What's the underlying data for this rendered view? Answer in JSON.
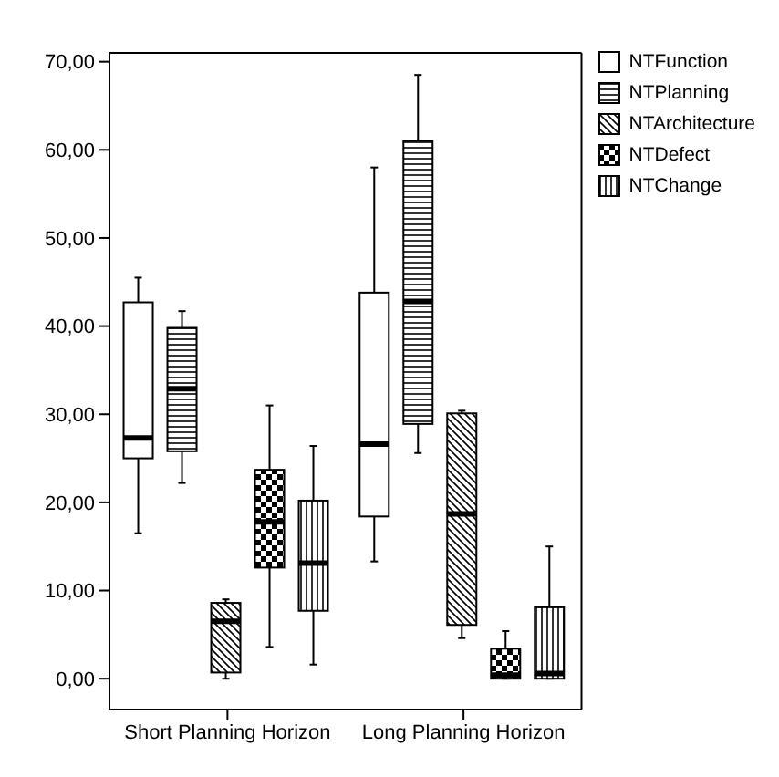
{
  "chart_data": {
    "type": "box",
    "categories": [
      "Short Planning Horizon",
      "Long Planning Horizon"
    ],
    "ylim": [
      -3.5,
      71
    ],
    "yticks": [
      {
        "value": 0,
        "label": "0,00"
      },
      {
        "value": 10,
        "label": "10,00"
      },
      {
        "value": 20,
        "label": "20,00"
      },
      {
        "value": 30,
        "label": "30,00"
      },
      {
        "value": 40,
        "label": "40,00"
      },
      {
        "value": 50,
        "label": "50,00"
      },
      {
        "value": 60,
        "label": "60,00"
      },
      {
        "value": 70,
        "label": "70,00"
      }
    ],
    "legend": "top right",
    "grid": false,
    "series": [
      {
        "name": "NTFunction",
        "color": "#000000",
        "boxes": [
          {
            "low": 16.5,
            "q1": 25,
            "median": 27.3,
            "q3": 42.7,
            "high": 45.5
          },
          {
            "low": 13.3,
            "q1": 18.4,
            "median": 26.6,
            "q3": 43.8,
            "high": 58
          }
        ]
      },
      {
        "name": "NTPlanning",
        "color": "#000000",
        "boxes": [
          {
            "low": 22.2,
            "q1": 25.8,
            "median": 32.9,
            "q3": 39.8,
            "high": 41.7
          },
          {
            "low": 25.6,
            "q1": 28.9,
            "median": 42.8,
            "q3": 61,
            "high": 68.5
          }
        ]
      },
      {
        "name": "NTArchitecture",
        "color": "#000000",
        "boxes": [
          {
            "low": 0,
            "q1": 0.7,
            "median": 6.5,
            "q3": 8.6,
            "high": 9
          },
          {
            "low": 4.6,
            "q1": 6.1,
            "median": 18.7,
            "q3": 30.1,
            "high": 30.4
          }
        ]
      },
      {
        "name": "NTDefect",
        "color": "#000000",
        "boxes": [
          {
            "low": 3.6,
            "q1": 12.6,
            "median": 17.8,
            "q3": 23.7,
            "high": 31
          },
          {
            "low": 0,
            "q1": 0,
            "median": 0.4,
            "q3": 3.4,
            "high": 5.4
          }
        ]
      },
      {
        "name": "NTChange",
        "color": "#000000",
        "boxes": [
          {
            "low": 1.6,
            "q1": 7.7,
            "median": 13.1,
            "q3": 20.2,
            "high": 26.4
          },
          {
            "low": 0,
            "q1": 0,
            "median": 0.6,
            "q3": 8.1,
            "high": 15
          }
        ]
      }
    ]
  }
}
